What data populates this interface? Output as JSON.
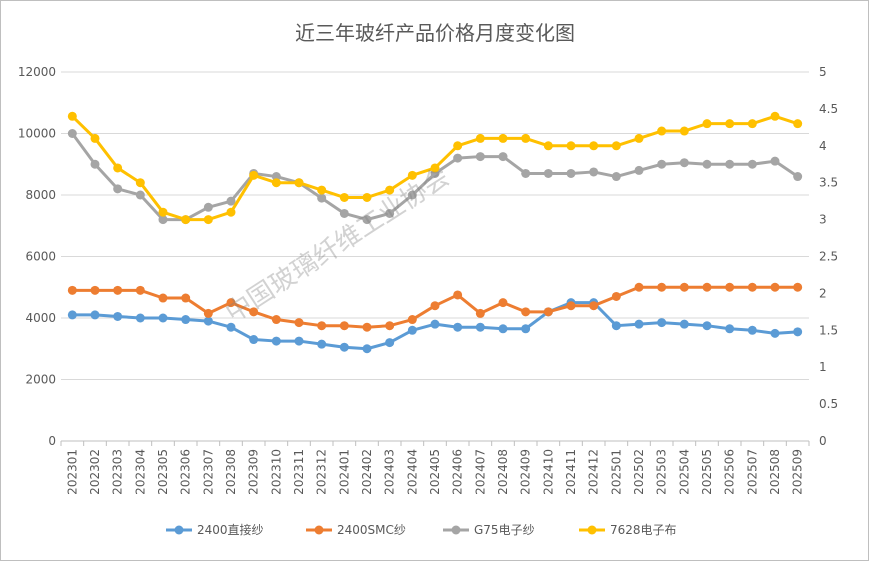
{
  "chart_data": {
    "type": "line",
    "title": "近三年玻纤产品价格月度变化图",
    "watermark": "中国玻璃纤维工业协会",
    "y_left": {
      "min": 0,
      "max": 12000,
      "ticks": [
        "0",
        "2000",
        "4000",
        "6000",
        "8000",
        "10000",
        "12000"
      ]
    },
    "y_right": {
      "min": 0,
      "max": 5,
      "ticks": [
        "0",
        "0.5",
        "1",
        "1.5",
        "2",
        "2.5",
        "3",
        "3.5",
        "4",
        "4.5",
        "5"
      ]
    },
    "grid": true,
    "legend_position": "bottom",
    "categories": [
      "202301",
      "202302",
      "202303",
      "202304",
      "202305",
      "202306",
      "202307",
      "202308",
      "202309",
      "202310",
      "202311",
      "202312",
      "202401",
      "202402",
      "202403",
      "202404",
      "202405",
      "202406",
      "202407",
      "202408",
      "202409",
      "202410",
      "202411",
      "202412",
      "202501",
      "202502",
      "202503",
      "202504",
      "202505",
      "202506",
      "202507",
      "202508",
      "202509"
    ],
    "series": [
      {
        "name": "2400直接纱",
        "axis": "left",
        "color": "#5b9bd5",
        "values": [
          4100,
          4100,
          4050,
          4000,
          4000,
          3950,
          3900,
          3700,
          3300,
          3250,
          3250,
          3150,
          3050,
          3000,
          3200,
          3600,
          3800,
          3700,
          3700,
          3650,
          3650,
          4200,
          4500,
          4500,
          3750,
          3800,
          3850,
          3800,
          3750,
          3650,
          3600,
          3500,
          3550
        ]
      },
      {
        "name": "2400SMC纱",
        "axis": "left",
        "color": "#ed7d31",
        "values": [
          4900,
          4900,
          4900,
          4900,
          4650,
          4650,
          4150,
          4500,
          4200,
          3950,
          3850,
          3750,
          3750,
          3700,
          3750,
          3950,
          4400,
          4750,
          4150,
          4500,
          4200,
          4200,
          4400,
          4400,
          4700,
          5000,
          5000,
          5000,
          5000,
          5000,
          5000,
          5000,
          5000
        ]
      },
      {
        "name": "G75电子纱",
        "axis": "left",
        "color": "#a5a5a5",
        "values": [
          10000,
          9000,
          8200,
          8000,
          7200,
          7200,
          7600,
          7800,
          8700,
          8600,
          8400,
          7900,
          7400,
          7200,
          7400,
          8000,
          8700,
          9200,
          9250,
          9250,
          8700,
          8700,
          8700,
          8750,
          8600,
          8800,
          9000,
          9050,
          9000,
          9000,
          9000,
          9100,
          8600
        ]
      },
      {
        "name": "7628电子布",
        "axis": "right",
        "color": "#ffc000",
        "values": [
          4.4,
          4.1,
          3.7,
          3.5,
          3.1,
          3.0,
          3.0,
          3.1,
          3.6,
          3.5,
          3.5,
          3.4,
          3.3,
          3.3,
          3.4,
          3.6,
          3.7,
          4.0,
          4.1,
          4.1,
          4.1,
          4.0,
          4.0,
          4.0,
          4.0,
          4.1,
          4.2,
          4.2,
          4.3,
          4.3,
          4.3,
          4.4,
          4.3
        ]
      }
    ]
  }
}
